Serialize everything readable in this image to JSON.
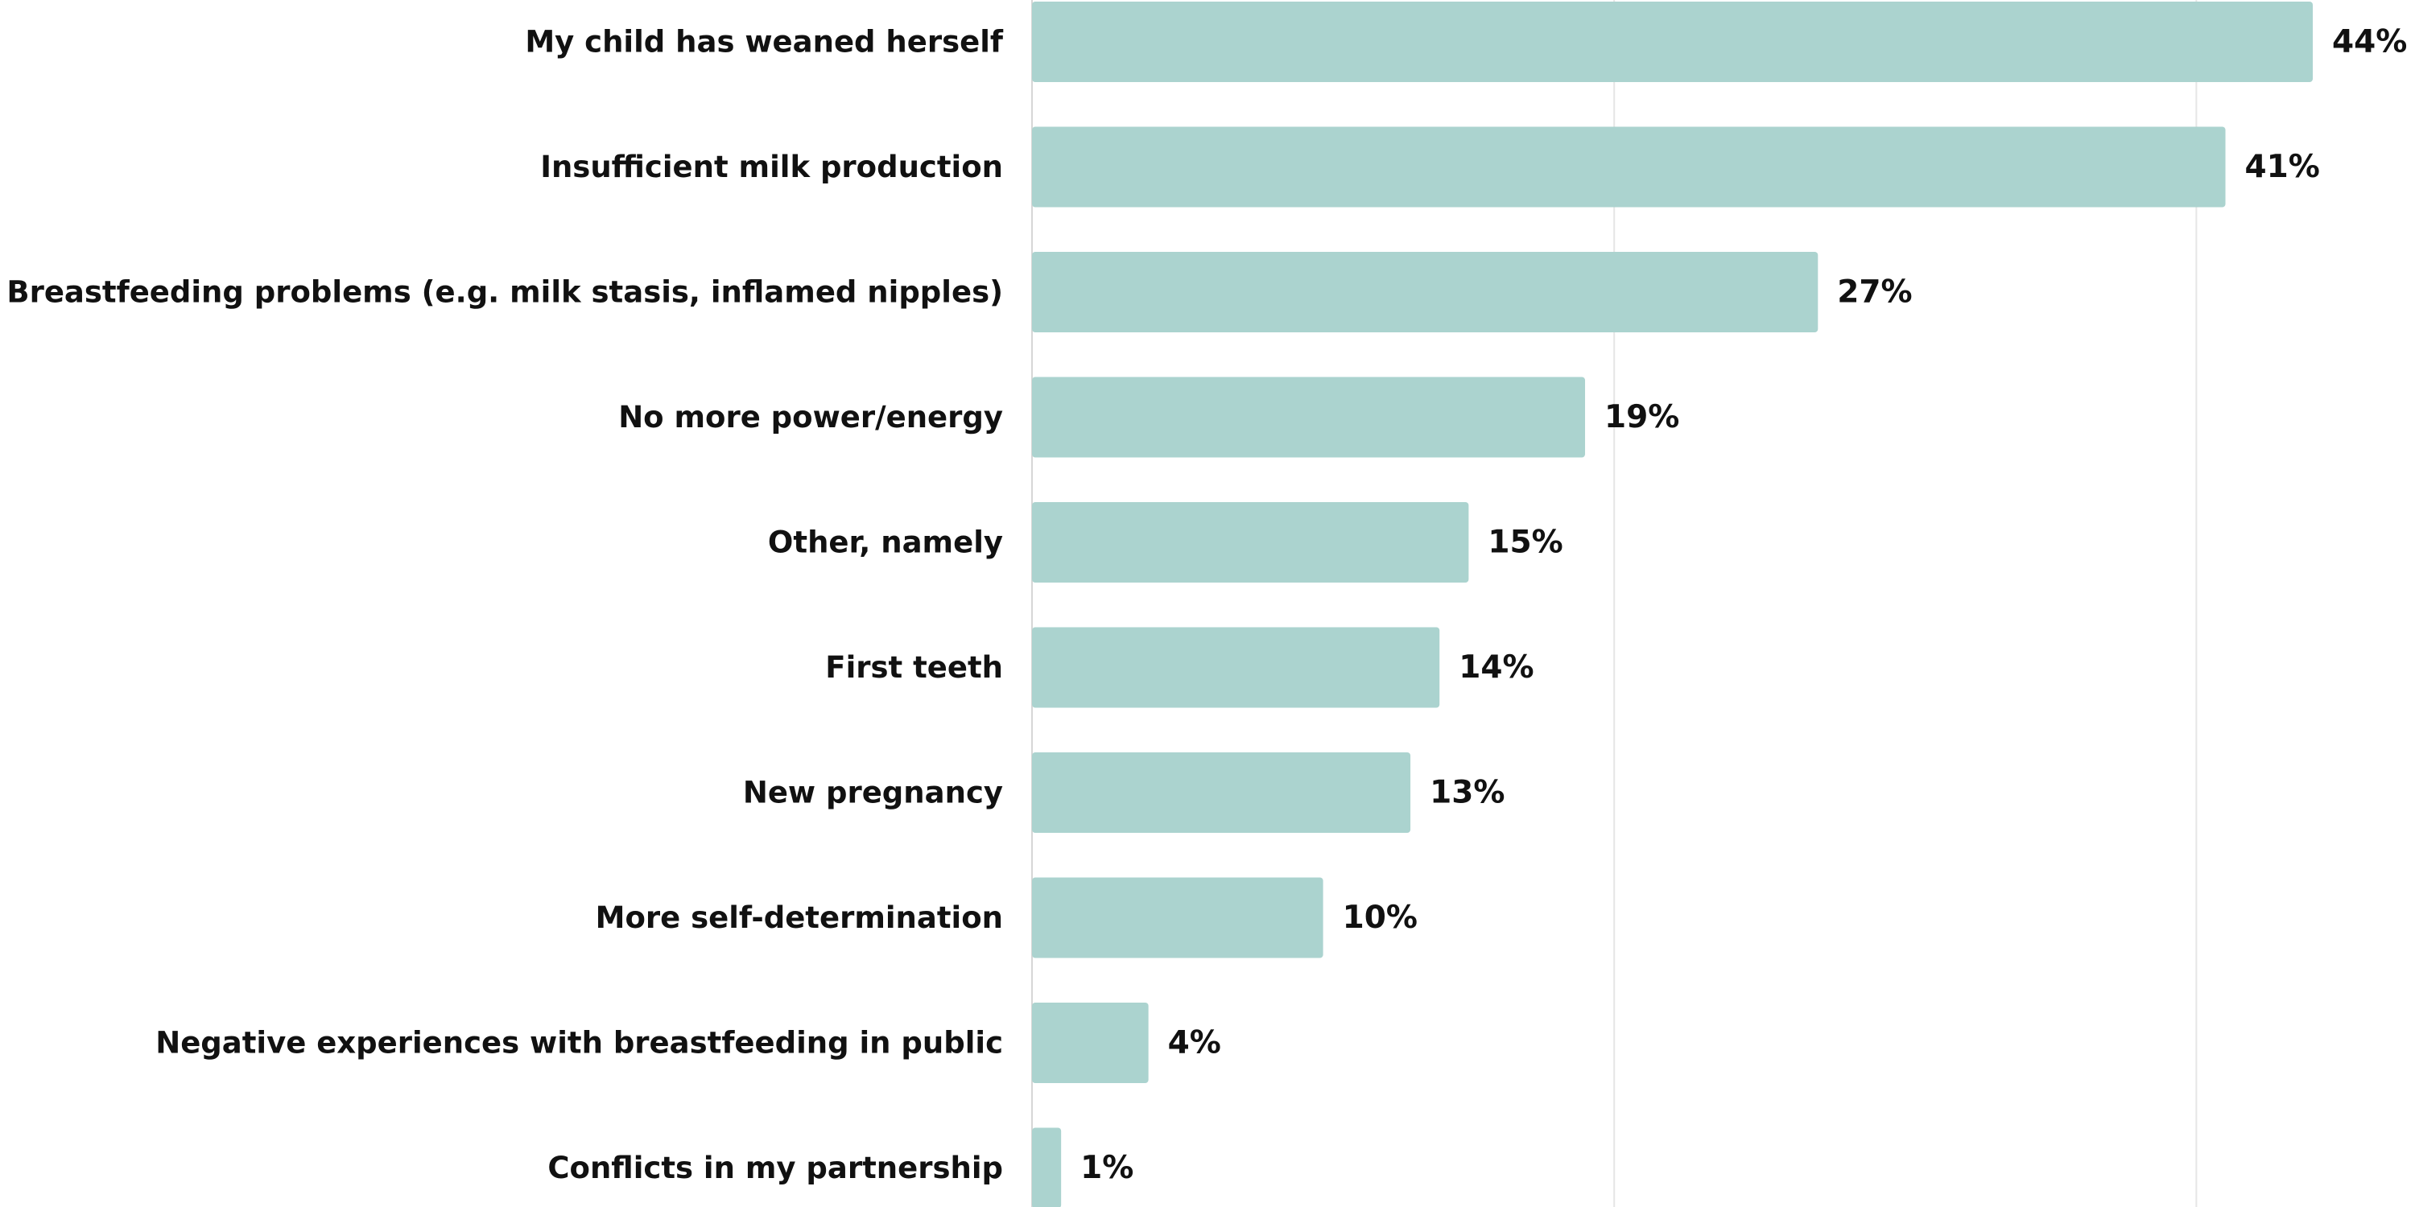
{
  "chart_data": {
    "type": "bar",
    "orientation": "horizontal",
    "categories": [
      "My child has weaned herself",
      "Insufficient milk production",
      "Breastfeeding problems (e.g. milk stasis, inflamed nipples)",
      "No more power/energy",
      "Other, namely",
      "First teeth",
      "New pregnancy",
      "More self-determination",
      "Negative experiences with breastfeeding in public",
      "Conflicts in my partnership"
    ],
    "values": [
      44,
      41,
      27,
      19,
      15,
      14,
      13,
      10,
      4,
      1
    ],
    "value_labels": [
      "44%",
      "41%",
      "27%",
      "19%",
      "15%",
      "14%",
      "13%",
      "10%",
      "4%",
      "1%"
    ],
    "unit": "%",
    "xlim": [
      0,
      44
    ],
    "gridlines_at": [
      20,
      40
    ],
    "grid": true,
    "legend": "none",
    "title": "",
    "xlabel": "",
    "ylabel": "",
    "colors": {
      "bar": "#abd3cf",
      "text": "#111111",
      "grid": "#e6e6e6"
    }
  }
}
